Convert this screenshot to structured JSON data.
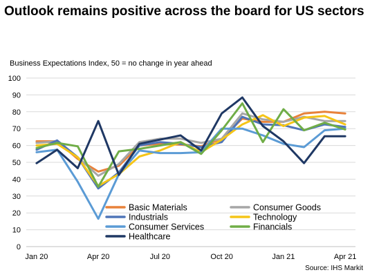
{
  "title": "Outlook remains positive across the board for US sectors",
  "subtitle": "Business Expectations Index, 50 = no change in year ahead",
  "source": "Source: IHS Markit",
  "chart_data": {
    "type": "line",
    "x": [
      "Jan 20",
      "Feb 20",
      "Mar 20",
      "Apr 20",
      "May 20",
      "Jun 20",
      "Jul 20",
      "Aug 20",
      "Sep 20",
      "Oct 20",
      "Nov 20",
      "Dec 20",
      "Jan 21",
      "Feb 21",
      "Mar 21",
      "Apr 21"
    ],
    "tick_labels": [
      "Jan 20",
      "Apr 20",
      "Jul 20",
      "Oct 20",
      "Jan 21",
      "Apr 21"
    ],
    "ylim": [
      0,
      100
    ],
    "yticks": [
      0,
      10,
      20,
      30,
      40,
      50,
      60,
      70,
      80,
      90,
      100
    ],
    "grid": true,
    "legend_position": "bottom-left-inside",
    "series": [
      {
        "name": "Basic Materials",
        "color": "#e8823a",
        "values": [
          62.5,
          62.5,
          52,
          44.5,
          48,
          60,
          61,
          60.5,
          59.5,
          64,
          76,
          74,
          74,
          79,
          80,
          79
        ]
      },
      {
        "name": "Consumer Goods",
        "color": "#a6a6a6",
        "values": [
          61.5,
          62.5,
          53,
          42,
          49,
          62,
          64,
          64,
          61.5,
          64,
          79,
          75.5,
          74,
          77,
          74.5,
          74.5
        ]
      },
      {
        "name": "Industrials",
        "color": "#4f75b8",
        "values": [
          57.5,
          63,
          53,
          34.5,
          44,
          60,
          62,
          61,
          59,
          62,
          77,
          72.5,
          72,
          69,
          72.5,
          71
        ]
      },
      {
        "name": "Technology",
        "color": "#f5c518",
        "values": [
          60,
          61,
          53,
          36,
          43,
          53.5,
          57,
          62,
          56,
          63.5,
          72.5,
          78,
          71.5,
          76.5,
          77.5,
          72.5
        ]
      },
      {
        "name": "Consumer Services",
        "color": "#5b9bd5",
        "values": [
          56,
          57.5,
          38.5,
          16.5,
          43,
          57,
          55.5,
          55.5,
          56,
          70,
          70,
          66,
          61,
          59,
          69,
          70
        ]
      },
      {
        "name": "Financials",
        "color": "#70ad47",
        "values": [
          58.5,
          61.5,
          59.5,
          35.5,
          56.5,
          58,
          60,
          62,
          55,
          69,
          85,
          62,
          81.5,
          69,
          73.5,
          69.5
        ]
      },
      {
        "name": "Healthcare",
        "color": "#1f3864",
        "values": [
          49.5,
          57.5,
          46.5,
          74.5,
          42.5,
          61,
          63.5,
          66,
          57,
          79,
          88.5,
          71.5,
          62.5,
          49.5,
          65.5,
          65.5
        ]
      }
    ]
  }
}
